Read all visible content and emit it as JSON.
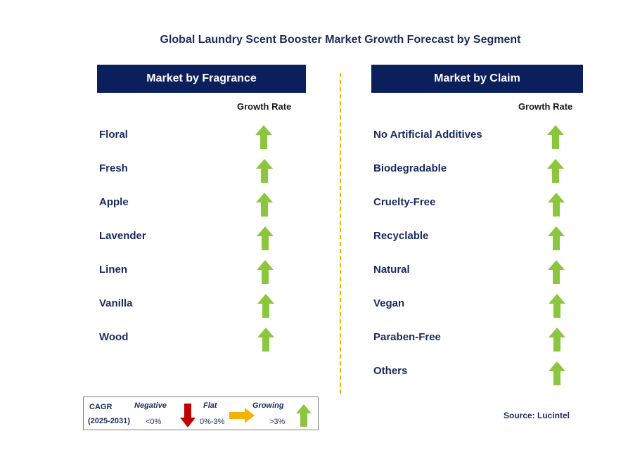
{
  "title": "Global Laundry Scent Booster Market Growth Forecast by Segment",
  "left_panel": {
    "header": "Market by Fragrance",
    "growth_label": "Growth Rate",
    "items": [
      "Floral",
      "Fresh",
      "Apple",
      "Lavender",
      "Linen",
      "Vanilla",
      "Wood"
    ],
    "trend": "growing"
  },
  "right_panel": {
    "header": "Market by Claim",
    "growth_label": "Growth Rate",
    "items": [
      "No Artificial Additives",
      "Biodegradable",
      "Cruelty-Free",
      "Recyclable",
      "Natural",
      "Vegan",
      "Paraben-Free",
      "Others"
    ],
    "trend": "growing"
  },
  "legend": {
    "cagr_label": "CAGR",
    "period": "(2025-2031)",
    "negative_label": "Negative",
    "negative_range": "<0%",
    "flat_label": "Flat",
    "flat_range": "0%-3%",
    "growing_label": "Growing",
    "growing_range": ">3%"
  },
  "source": "Source: Lucintel",
  "colors": {
    "header_bg": "#0a1f5c",
    "text": "#1a2a5e",
    "growing_arrow": "#8cc63f",
    "negative_arrow": "#c00000",
    "flat_arrow": "#f5b300",
    "divider": "#f5b300"
  }
}
